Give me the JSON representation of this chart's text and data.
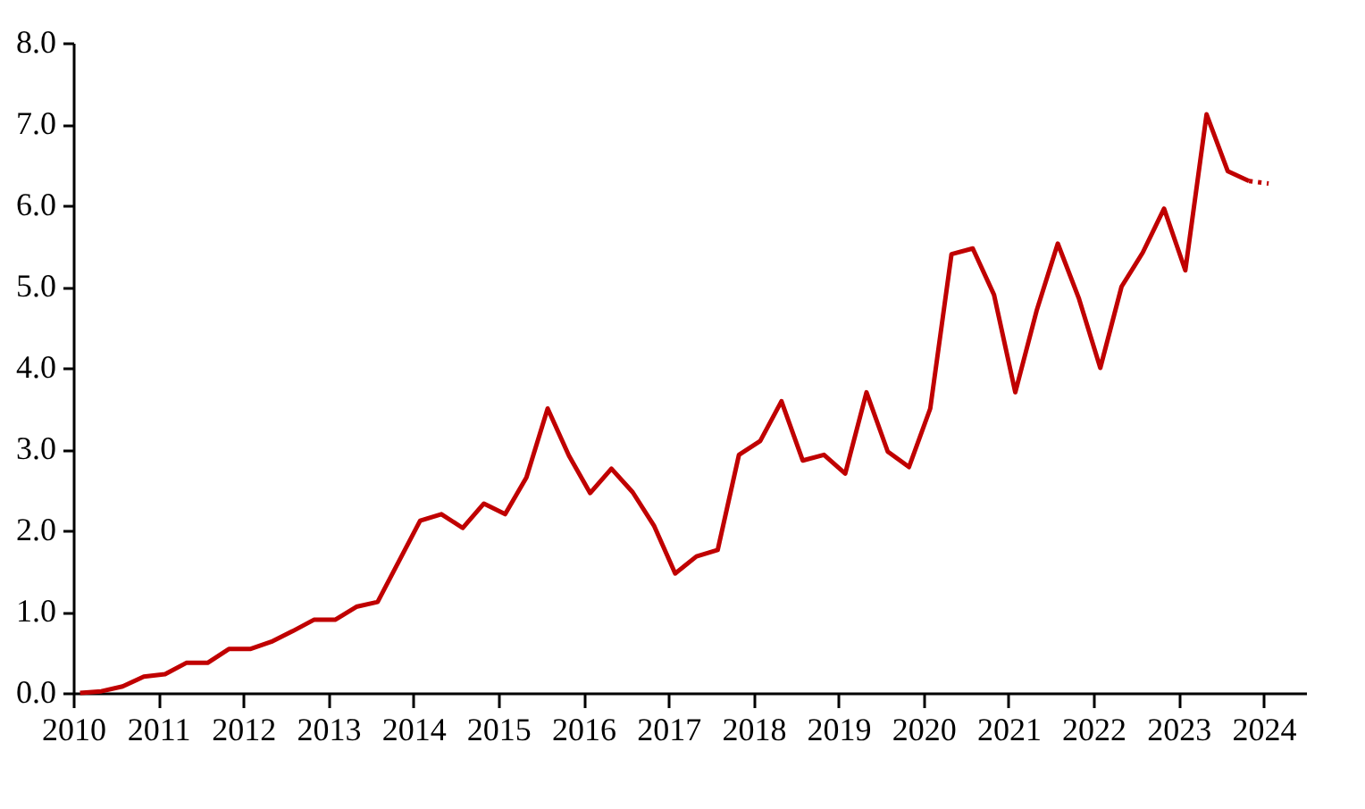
{
  "chart_data": {
    "type": "line",
    "xlim": [
      2010,
      2024.5
    ],
    "xticks": [
      2010,
      2011,
      2012,
      2013,
      2014,
      2015,
      2016,
      2017,
      2018,
      2019,
      2020,
      2021,
      2022,
      2023,
      2024
    ],
    "ylim": [
      0,
      8
    ],
    "yticks": [
      {
        "value": 0,
        "label": "0.0"
      },
      {
        "value": 1,
        "label": "1.0"
      },
      {
        "value": 2,
        "label": "2.0"
      },
      {
        "value": 3,
        "label": "3.0"
      },
      {
        "value": 4,
        "label": "4.0"
      },
      {
        "value": 5,
        "label": "5.0"
      },
      {
        "value": 6,
        "label": "6.0"
      },
      {
        "value": 7,
        "label": "7.0"
      },
      {
        "value": 8,
        "label": "8.0"
      }
    ],
    "grid": false,
    "marker": "none",
    "series": [
      {
        "color": "#c00000",
        "line_style": "solid",
        "x": [
          2010.08,
          2010.33,
          2010.58,
          2010.83,
          2011.08,
          2011.33,
          2011.58,
          2011.83,
          2012.08,
          2012.33,
          2012.58,
          2012.83,
          2013.08,
          2013.33,
          2013.58,
          2013.83,
          2014.08,
          2014.33,
          2014.58,
          2014.83,
          2015.08,
          2015.33,
          2015.58,
          2015.83,
          2016.08,
          2016.33,
          2016.58,
          2016.83,
          2017.08,
          2017.33,
          2017.58,
          2017.83,
          2018.08,
          2018.33,
          2018.58,
          2018.83,
          2019.08,
          2019.33,
          2019.58,
          2019.83,
          2020.08,
          2020.33,
          2020.58,
          2020.83,
          2021.08,
          2021.33,
          2021.58,
          2021.83,
          2022.08,
          2022.33,
          2022.58,
          2022.83,
          2023.08,
          2023.33,
          2023.58,
          2023.83
        ],
        "values": [
          0.0,
          0.02,
          0.08,
          0.2,
          0.23,
          0.37,
          0.37,
          0.54,
          0.54,
          0.63,
          0.76,
          0.9,
          0.9,
          1.06,
          1.12,
          1.62,
          2.12,
          2.2,
          2.03,
          2.33,
          2.2,
          2.65,
          3.5,
          2.92,
          2.46,
          2.76,
          2.47,
          2.06,
          1.47,
          1.68,
          1.76,
          2.93,
          3.1,
          3.59,
          2.86,
          2.93,
          2.7,
          3.7,
          2.97,
          2.78,
          3.5,
          5.4,
          5.47,
          4.9,
          3.7,
          4.7,
          5.53,
          4.85,
          4.0,
          5.0,
          5.42,
          5.96,
          5.2,
          7.12,
          6.42,
          6.3
        ]
      },
      {
        "color": "#c00000",
        "line_style": "dotted",
        "x": [
          2023.83,
          2024.06
        ],
        "values": [
          6.3,
          6.27
        ]
      }
    ]
  }
}
